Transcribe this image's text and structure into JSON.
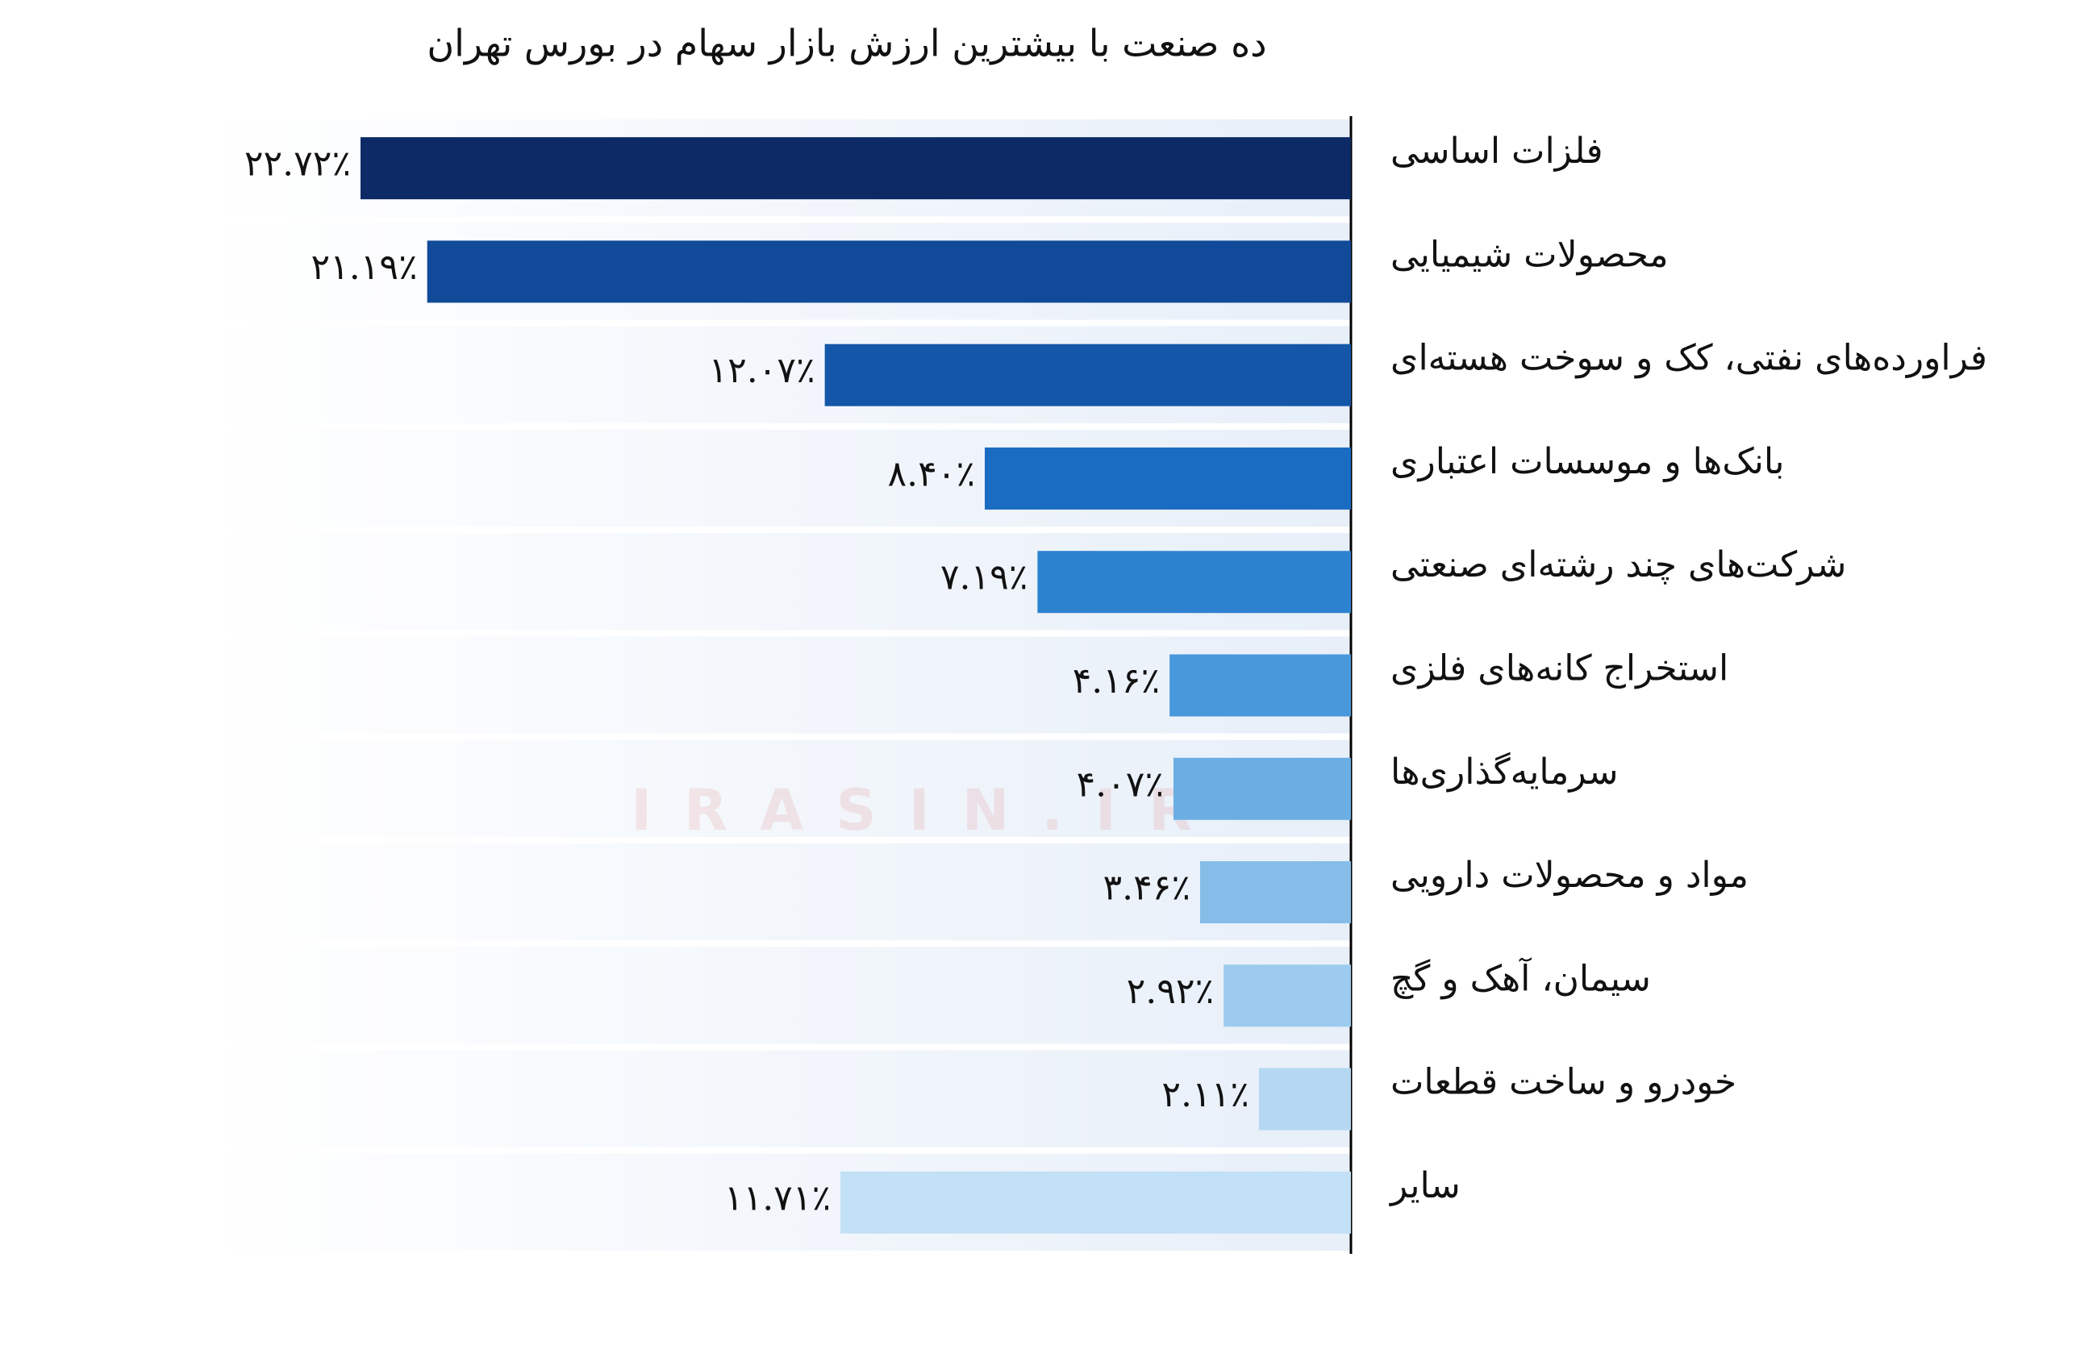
{
  "chart_data": {
    "type": "barh",
    "title": "ده صنعت با بیشترین ارزش بازار سهام در  بورس تهران",
    "watermark": "IRASIN.IR",
    "categories": [
      "فلزات اساسی",
      "محصولات شیمیایی",
      "فراورده‌های نفتی، کک و سوخت هسته‌ای",
      "بانک‌ها و موسسات اعتباری",
      "شرکت‌های چند رشته‌ای صنعتی",
      "استخراج کانه‌های فلزی",
      "سرمایه‌گذاری‌ها",
      "مواد و محصولات دارویی",
      "سیمان، آهک و گچ",
      "خودرو و ساخت قطعات",
      "سایر"
    ],
    "values": [
      22.72,
      21.19,
      12.07,
      8.4,
      7.19,
      4.16,
      4.07,
      3.46,
      2.92,
      2.11,
      11.71
    ],
    "value_labels": [
      "۲۲.۷۲٪",
      "۲۱.۱۹٪",
      "۱۲.۰۷٪",
      "۸.۴۰٪",
      "۷.۱۹٪",
      "۴.۱۶٪",
      "۴.۰۷٪",
      "۳.۴۶٪",
      "۲.۹۲٪",
      "۲.۱۱٪",
      "۱۱.۷۱٪"
    ],
    "colors": [
      "#0c2a66",
      "#104a98",
      "#1457a8",
      "#1a6cc2",
      "#2d82d0",
      "#4a98dc",
      "#6aaee4",
      "#85bde8",
      "#9ccbee",
      "#b4d8f2",
      "#c2e0f6"
    ]
  }
}
